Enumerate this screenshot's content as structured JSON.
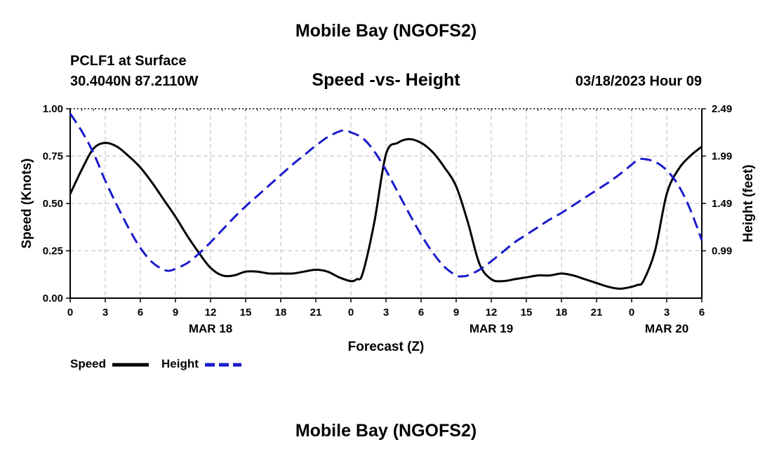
{
  "header": {
    "title": "Mobile Bay (NGOFS2)",
    "station": "PCLF1 at Surface",
    "coords": "30.4040N  87.2110W",
    "subtitle": "Speed -vs- Height",
    "datetime": "03/18/2023 Hour 09"
  },
  "footer": {
    "title": "Mobile Bay (NGOFS2)"
  },
  "legend": {
    "speed_label": "Speed",
    "height_label": "Height"
  },
  "colors": {
    "speed": "#000000",
    "height": "#1a1acc",
    "grid": "#bdbdbd"
  },
  "chart_data": {
    "type": "line",
    "xlabel": "Forecast (Z)",
    "ylabel_left": "Speed (Knots)",
    "ylabel_right": "Height (feet)",
    "x_range_hours": [
      0,
      54
    ],
    "x_ticks": [
      {
        "hour": 0,
        "label": "0"
      },
      {
        "hour": 3,
        "label": "3"
      },
      {
        "hour": 6,
        "label": "6"
      },
      {
        "hour": 9,
        "label": "9"
      },
      {
        "hour": 12,
        "label": "12"
      },
      {
        "hour": 15,
        "label": "15"
      },
      {
        "hour": 18,
        "label": "18"
      },
      {
        "hour": 21,
        "label": "21"
      },
      {
        "hour": 24,
        "label": "0"
      },
      {
        "hour": 27,
        "label": "3"
      },
      {
        "hour": 30,
        "label": "6"
      },
      {
        "hour": 33,
        "label": "9"
      },
      {
        "hour": 36,
        "label": "12"
      },
      {
        "hour": 39,
        "label": "15"
      },
      {
        "hour": 42,
        "label": "18"
      },
      {
        "hour": 45,
        "label": "21"
      },
      {
        "hour": 48,
        "label": "0"
      },
      {
        "hour": 51,
        "label": "3"
      },
      {
        "hour": 54,
        "label": "6"
      }
    ],
    "date_labels": [
      {
        "hour": 12,
        "label": "MAR 18"
      },
      {
        "hour": 36,
        "label": "MAR 19"
      },
      {
        "hour": 51,
        "label": "MAR 20"
      }
    ],
    "y_left": {
      "range": [
        0,
        1.0
      ],
      "ticks": [
        "0.00",
        "0.25",
        "0.50",
        "0.75",
        "1.00"
      ]
    },
    "y_right": {
      "range": [
        0.49,
        2.49
      ],
      "ticks": [
        "0.99",
        "1.49",
        "1.99",
        "2.49"
      ]
    },
    "series": [
      {
        "name": "Speed",
        "axis": "left",
        "style": "solid",
        "x": [
          0,
          1,
          2,
          3,
          4,
          5,
          6,
          7,
          8,
          9,
          10,
          11,
          12,
          13,
          14,
          15,
          16,
          17,
          18,
          19,
          20,
          21,
          22,
          23,
          24,
          24.5,
          25,
          26,
          27,
          28,
          29,
          30,
          31,
          32,
          33,
          34,
          35,
          36,
          37,
          38,
          39,
          40,
          41,
          42,
          43,
          44,
          45,
          46,
          47,
          48,
          48.5,
          49,
          50,
          51,
          52,
          53,
          54
        ],
        "values": [
          0.55,
          0.68,
          0.79,
          0.82,
          0.8,
          0.75,
          0.69,
          0.61,
          0.52,
          0.43,
          0.33,
          0.24,
          0.16,
          0.12,
          0.12,
          0.14,
          0.14,
          0.13,
          0.13,
          0.13,
          0.14,
          0.15,
          0.14,
          0.11,
          0.09,
          0.1,
          0.13,
          0.4,
          0.76,
          0.82,
          0.84,
          0.82,
          0.77,
          0.69,
          0.59,
          0.4,
          0.18,
          0.1,
          0.09,
          0.1,
          0.11,
          0.12,
          0.12,
          0.13,
          0.12,
          0.1,
          0.08,
          0.06,
          0.05,
          0.06,
          0.07,
          0.09,
          0.25,
          0.55,
          0.68,
          0.75,
          0.8
        ]
      },
      {
        "name": "Height",
        "axis": "right",
        "style": "dashed",
        "x": [
          0,
          1,
          2,
          3,
          4,
          5,
          6,
          7,
          8,
          8.5,
          9,
          10,
          11,
          12,
          13,
          14,
          15,
          16,
          17,
          18,
          19,
          20,
          21,
          22,
          23,
          23.5,
          24,
          25,
          26,
          27,
          28,
          29,
          30,
          31,
          32,
          33,
          33.5,
          34,
          35,
          36,
          37,
          38,
          39,
          40,
          41,
          42,
          43,
          44,
          45,
          46,
          47,
          48,
          48.5,
          49,
          50,
          51,
          52,
          53,
          54
        ],
        "values": [
          2.44,
          2.25,
          2.02,
          1.73,
          1.47,
          1.23,
          1.02,
          0.87,
          0.79,
          0.78,
          0.8,
          0.86,
          0.96,
          1.08,
          1.21,
          1.34,
          1.46,
          1.57,
          1.68,
          1.79,
          1.9,
          2.0,
          2.1,
          2.19,
          2.25,
          2.26,
          2.24,
          2.18,
          2.04,
          1.84,
          1.61,
          1.38,
          1.16,
          0.97,
          0.82,
          0.73,
          0.72,
          0.73,
          0.79,
          0.88,
          0.98,
          1.08,
          1.16,
          1.24,
          1.32,
          1.39,
          1.47,
          1.55,
          1.63,
          1.71,
          1.8,
          1.9,
          1.95,
          1.96,
          1.93,
          1.84,
          1.68,
          1.43,
          1.1
        ]
      }
    ]
  }
}
